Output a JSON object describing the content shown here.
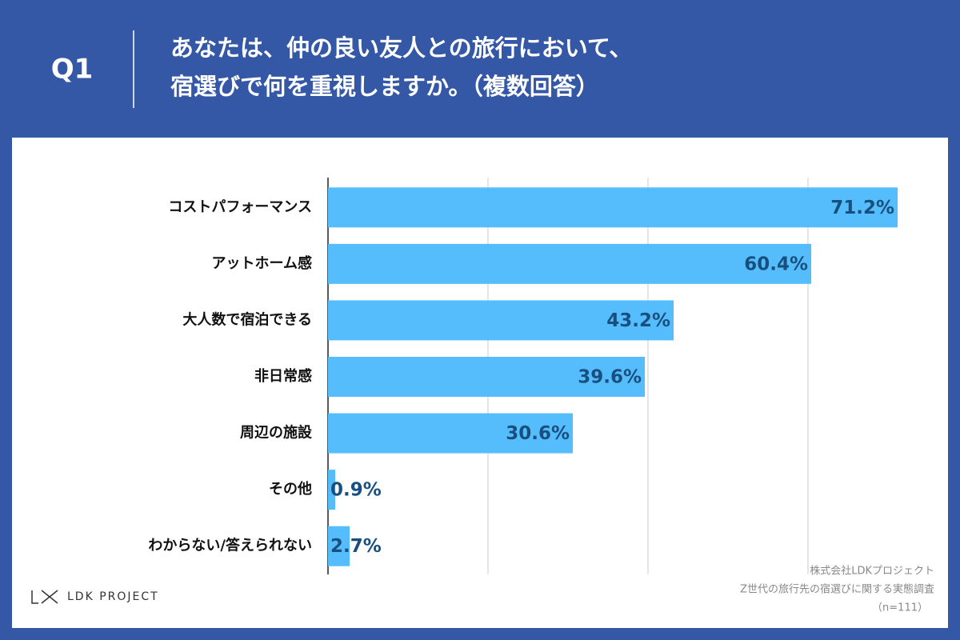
{
  "header": {
    "label": "Q1",
    "title_lines": [
      "あなたは、仲の良い友人との旅行において、",
      "宿選びで何を重視しますか。（複数回答）"
    ]
  },
  "chart_data": {
    "type": "hbar",
    "categories": [
      "コストパフォーマンス",
      "アットホーム感",
      "大人数で宿泊できる",
      "非日常感",
      "周辺の施設",
      "その他",
      "わからない/答えられない"
    ],
    "values": [
      71.2,
      60.4,
      43.2,
      39.6,
      30.6,
      0.9,
      2.7
    ],
    "value_labels": [
      "71.2%",
      "60.4%",
      "43.2%",
      "39.6%",
      "30.6%",
      "0.9%",
      "2.7%"
    ],
    "color": "#56bdfc",
    "label_color": "#17507f",
    "xlim": [
      0,
      77.5
    ],
    "xticks": [
      0,
      20,
      40,
      60
    ],
    "grid": true
  },
  "footer": {
    "logo": "LDK PROJECT",
    "source_lines": [
      "株式会社LDKプロジェクト",
      "Z世代の旅行先の宿選びに関する実態調査",
      "（n=111）"
    ]
  }
}
